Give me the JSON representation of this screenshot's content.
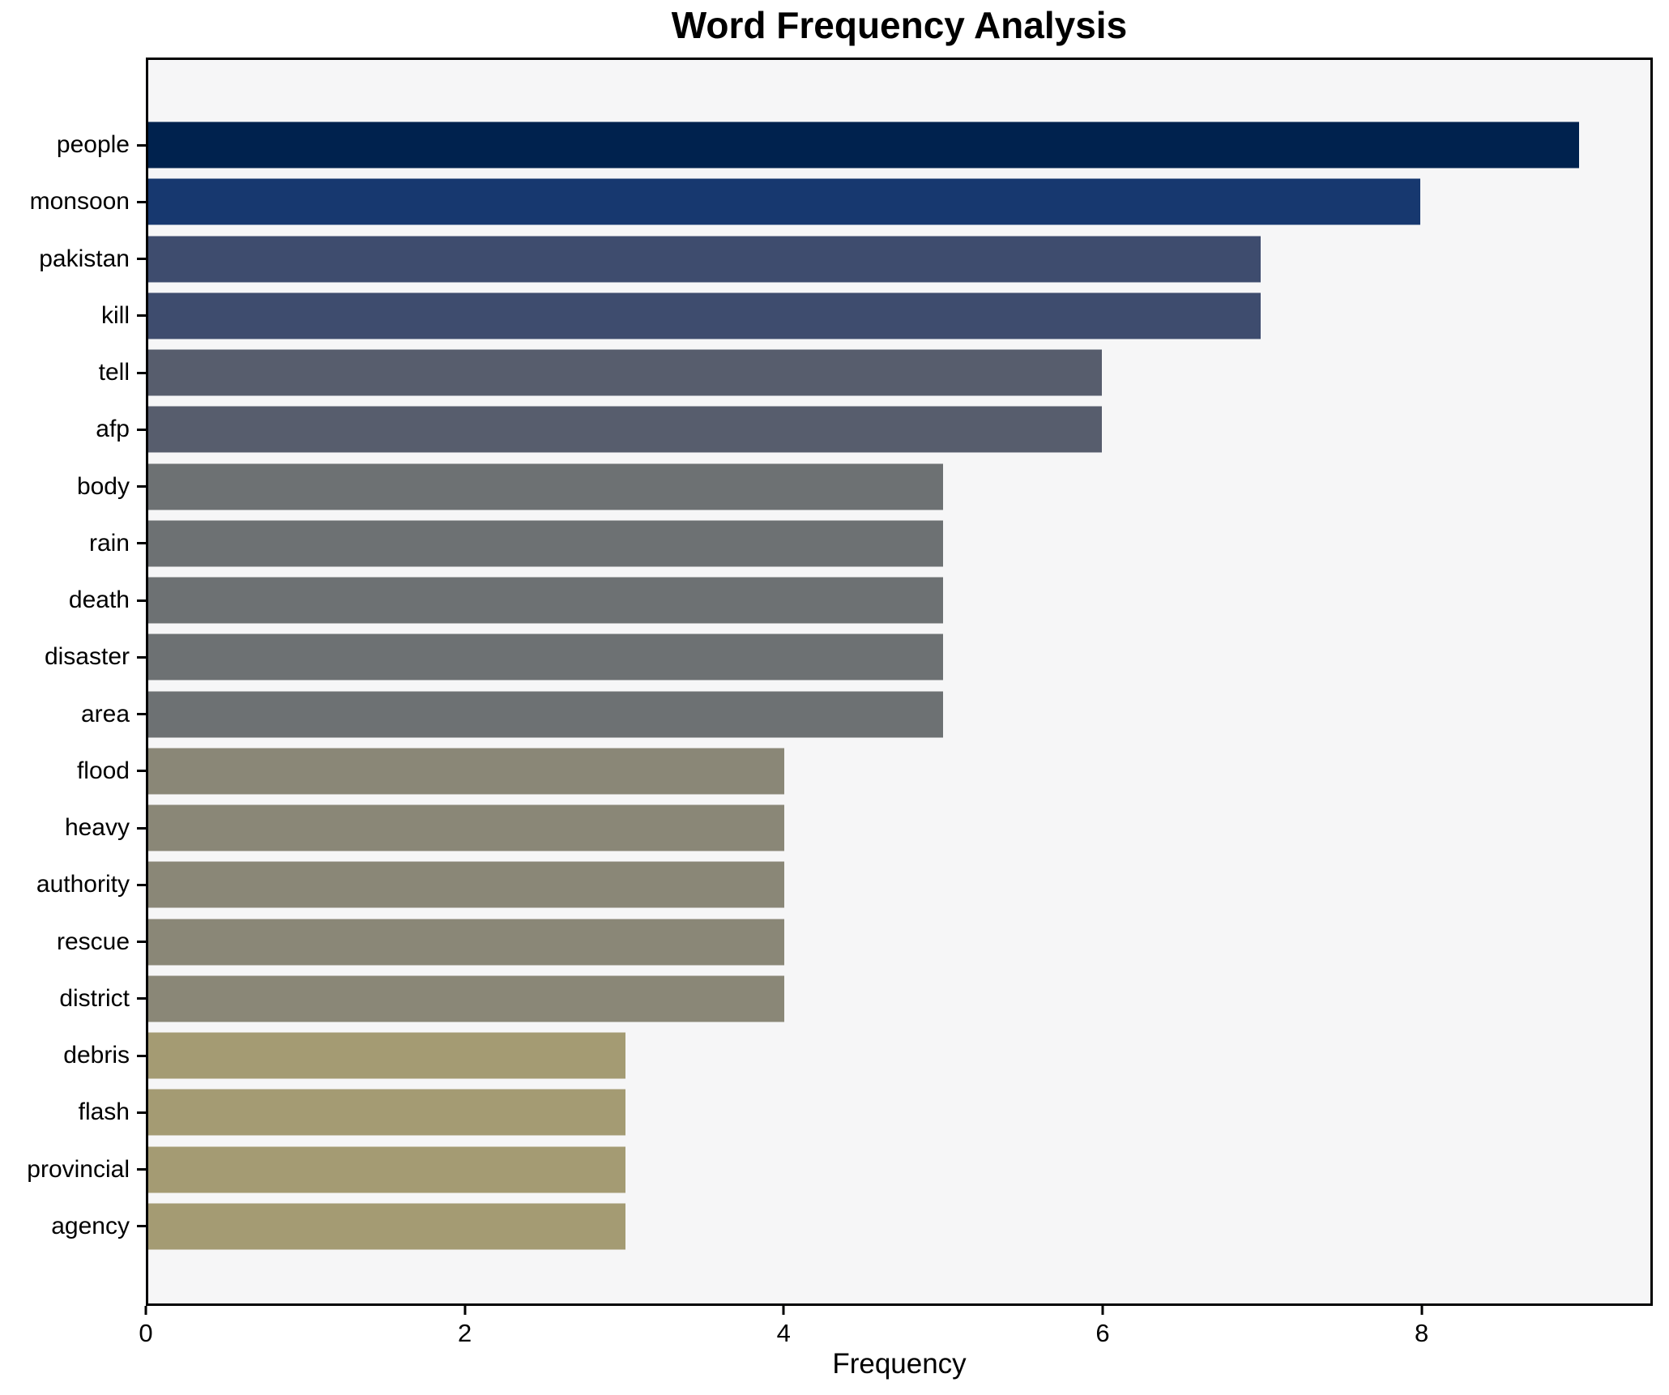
{
  "chart_data": {
    "type": "bar",
    "orientation": "horizontal",
    "title": "Word Frequency Analysis",
    "xlabel": "Frequency",
    "ylabel": "",
    "categories": [
      "people",
      "monsoon",
      "pakistan",
      "kill",
      "tell",
      "afp",
      "body",
      "rain",
      "death",
      "disaster",
      "area",
      "flood",
      "heavy",
      "authority",
      "rescue",
      "district",
      "debris",
      "flash",
      "provincial",
      "agency"
    ],
    "values": [
      9,
      8,
      7,
      7,
      6,
      6,
      5,
      5,
      5,
      5,
      5,
      4,
      4,
      4,
      4,
      4,
      3,
      3,
      3,
      3
    ],
    "bar_colors": [
      "#00224e",
      "#17386f",
      "#3e4c6e",
      "#3e4c6e",
      "#575d6d",
      "#575d6d",
      "#6d7173",
      "#6d7173",
      "#6d7173",
      "#6d7173",
      "#6d7173",
      "#8a8777",
      "#8a8777",
      "#8a8777",
      "#8a8777",
      "#8a8777",
      "#a49b73",
      "#a49b73",
      "#a49b73",
      "#a49b73"
    ],
    "colormap": "cividis",
    "xlim": [
      0,
      9.45
    ],
    "xticks": [
      0,
      2,
      4,
      6,
      8
    ],
    "grid": false,
    "legend_position": "none",
    "plot_background": "#f6f6f7",
    "figure_background": "#ffffff",
    "spine_color": "#000000"
  }
}
